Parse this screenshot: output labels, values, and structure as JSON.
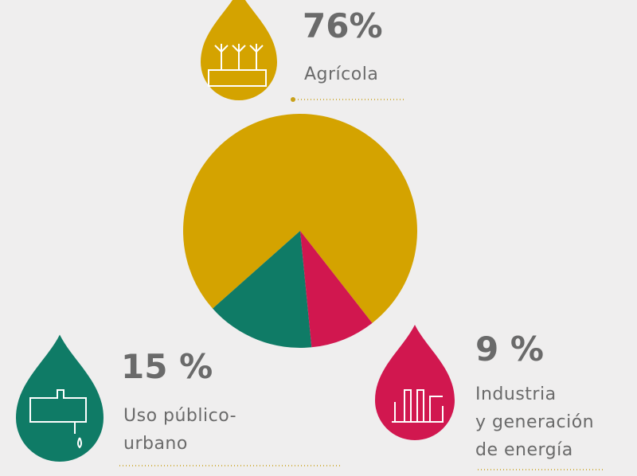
{
  "chart_data": {
    "type": "pie",
    "categories": [
      "Agrícola",
      "Uso público-\nurbano",
      "Industria\ny generación\nde energía"
    ],
    "values": [
      76,
      15,
      9
    ],
    "value_labels": [
      "76%",
      "15 %",
      "9 %"
    ],
    "colors": [
      "#d4a300",
      "#0f7b66",
      "#d1174f"
    ]
  }
}
